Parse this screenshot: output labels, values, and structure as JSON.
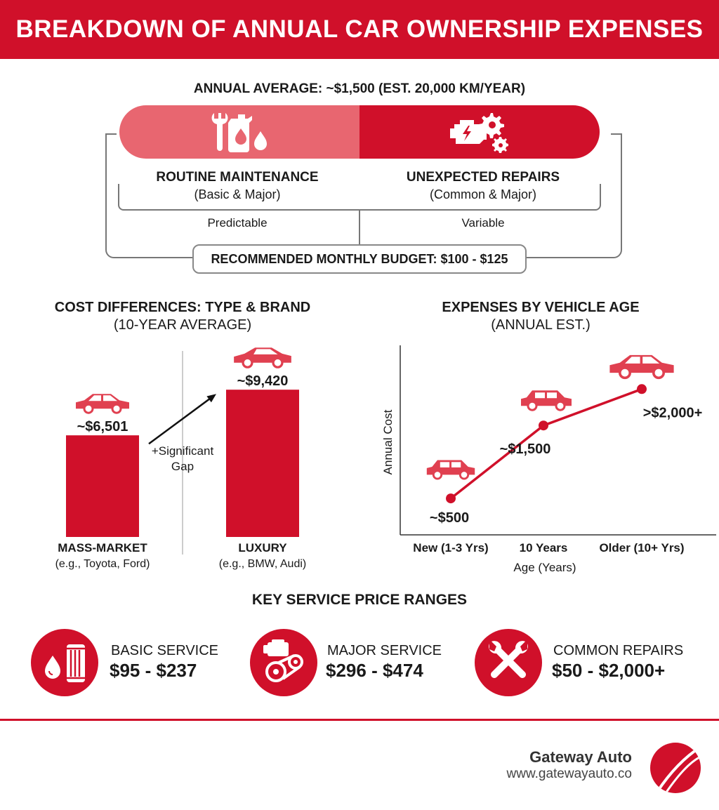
{
  "title": "BREAKDOWN OF ANNUAL CAR OWNERSHIP EXPENSES",
  "overview": {
    "annual_average": "ANNUAL AVERAGE: ~$1,500 (EST. 20,000 KM/YEAR)",
    "left": {
      "title": "ROUTINE MAINTENANCE",
      "subtitle": "(Basic & Major)",
      "note": "Predictable",
      "icon": "wrench-oil-can-icon"
    },
    "right": {
      "title": "UNEXPECTED REPAIRS",
      "subtitle": "(Common & Major)",
      "note": "Variable",
      "icon": "engine-gears-icon"
    },
    "budget": "RECOMMENDED MONTHLY BUDGET: $100 - $125"
  },
  "colors": {
    "accent": "#d0102a",
    "accent_light": "#e86670",
    "text": "#1a1a1a"
  },
  "chart_data": [
    {
      "type": "bar",
      "title": "COST DIFFERENCES: TYPE & BRAND",
      "subtitle": "(10-YEAR AVERAGE)",
      "categories": [
        "MASS-MARKET",
        "LUXURY"
      ],
      "category_subtitles": [
        "(e.g., Toyota, Ford)",
        "(e.g., BMW, Audi)"
      ],
      "values": [
        6501,
        9420
      ],
      "value_labels": [
        "~$6,501",
        "~$9,420"
      ],
      "annotation": [
        "+Significant",
        "Gap"
      ],
      "ylim": [
        0,
        11000
      ],
      "grid": false
    },
    {
      "type": "line",
      "title": "EXPENSES BY VEHICLE AGE",
      "subtitle": "(ANNUAL EST.)",
      "x": [
        "New (1-3 Yrs)",
        "10 Years",
        "Older (10+ Yrs)"
      ],
      "values": [
        500,
        1500,
        2000
      ],
      "value_labels": [
        "~$500",
        "~$1,500",
        ">$2,000+"
      ],
      "xlabel": "Age (Years)",
      "ylabel": "Annual Cost",
      "ylim": [
        0,
        2600
      ],
      "grid": false
    }
  ],
  "services": {
    "title": "KEY SERVICE PRICE RANGES",
    "items": [
      {
        "label": "BASIC SERVICE",
        "price": "$95 - $237",
        "icon": "oil-filter-icon"
      },
      {
        "label": "MAJOR SERVICE",
        "price": "$296 - $474",
        "icon": "engine-belt-icon"
      },
      {
        "label": "COMMON REPAIRS",
        "price": "$50 - $2,000+",
        "icon": "crossed-wrenches-icon"
      }
    ]
  },
  "footer": {
    "brand": "Gateway Auto",
    "url": "www.gatewayauto.co"
  }
}
